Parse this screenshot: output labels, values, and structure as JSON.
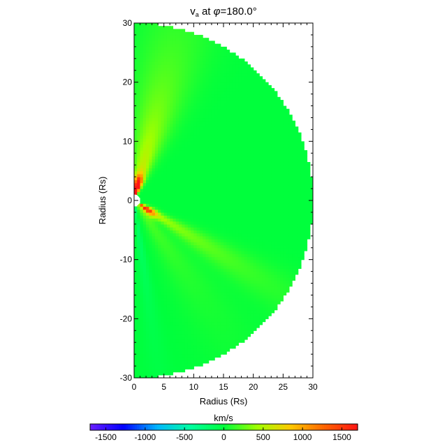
{
  "chart_data": {
    "type": "heatmap",
    "title": {
      "variable": "v",
      "subscript": "a",
      "connector": " at ",
      "angle_symbol": "φ",
      "angle_value": "=180.0°"
    },
    "xlabel": "Radius (Rs)",
    "ylabel": "Radius (Rs)",
    "xlim": [
      0,
      30
    ],
    "ylim": [
      -30,
      30
    ],
    "x_ticks": [
      0,
      5,
      10,
      15,
      20,
      25,
      30
    ],
    "y_ticks": [
      -30,
      -20,
      -10,
      0,
      10,
      20,
      30
    ],
    "domain": "half-disk of radius 30 Rs centred on the origin",
    "background_value": 0,
    "features": [
      {
        "kind": "ray",
        "angle_deg": 76,
        "peak_value": 850,
        "width_deg": 18
      },
      {
        "kind": "ray",
        "angle_deg": -32,
        "peak_value": 600,
        "width_deg": 10
      },
      {
        "kind": "ray",
        "angle_deg": -55,
        "peak_value": 250,
        "width_deg": 16
      },
      {
        "kind": "ray",
        "angle_deg": -82,
        "peak_value": -250,
        "width_deg": 6
      },
      {
        "kind": "hotspot",
        "angle_deg": 78,
        "peak_value": 1650
      },
      {
        "kind": "hotspot",
        "angle_deg": -35,
        "peak_value": 1250
      }
    ],
    "colorbar": {
      "label": "km/s",
      "min": -1700,
      "max": 1700,
      "ticks": [
        -1500,
        -1000,
        -500,
        0,
        500,
        1000,
        1500
      ],
      "colormap": [
        "#6a1eff",
        "#0000ff",
        "#00b4ff",
        "#00ffa0",
        "#00ff3c",
        "#a0ff00",
        "#ffc800",
        "#ff6400",
        "#ff1414"
      ]
    }
  }
}
